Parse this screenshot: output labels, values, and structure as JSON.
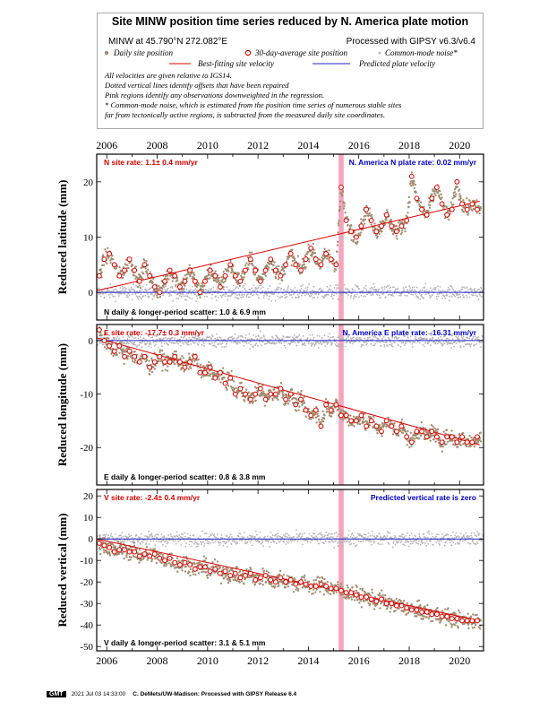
{
  "header": {
    "title": "Site MINW position time series reduced by N. America plate motion",
    "site": "MINW at 45.790°N 272.082°E",
    "processed": "Processed with GIPSY v6.3/v6.4",
    "legend": {
      "daily": "Daily site position",
      "avg": "30-day-average site position",
      "cm": "Common-mode noise*",
      "fit": "Best-fitting site velocity",
      "pred": "Predicted plate velocity"
    },
    "notes": [
      "All velocities are given relative to IGS14.",
      "Dotted vertical lines identify offsets that have been repaired",
      "Pink regions identify any observations downweighted in the regression.",
      "* Common-mode noise, which is estimated from the position time series of numerous stable sites",
      "far from tectonically active regions, is subtracted from the measured daily site coordinates."
    ]
  },
  "colors": {
    "daily": "#a08c6e",
    "cm": "#b4b4b4",
    "fit": "#e00000",
    "avg_edge": "#e00000",
    "pred": "#2020cc",
    "pink": "#f4a6bd",
    "rate_red": "#dd0000",
    "rate_blue": "#0000cc"
  },
  "chart_data": [
    {
      "type": "scatter",
      "component": "N",
      "ylabel": "Reduced latitude (mm)",
      "xlim": [
        2005.6,
        2020.95
      ],
      "ylim": [
        -5,
        25
      ],
      "yticks": [
        0,
        10,
        20
      ],
      "xticks": [
        2006,
        2008,
        2010,
        2012,
        2014,
        2016,
        2018,
        2020
      ],
      "site_rate": "N site rate:   1.1± 0.4 mm/yr",
      "plate_rate": "N. America N plate rate: 0.02 mm/yr",
      "scatter": "N daily & longer-period scatter:    1.0  &   6.9 mm",
      "fit_line": {
        "x": [
          2005.6,
          2020.8
        ],
        "y": [
          0.3,
          16.5
        ]
      },
      "pred_line": {
        "y": 0
      },
      "pink_band": [
        2015.2,
        2015.4
      ],
      "avg_series": {
        "x": [
          2005.7,
          2005.9,
          2006.1,
          2006.3,
          2006.5,
          2006.7,
          2006.9,
          2007.1,
          2007.3,
          2007.5,
          2007.7,
          2007.9,
          2008.1,
          2008.3,
          2008.5,
          2008.7,
          2008.9,
          2009.1,
          2009.3,
          2009.5,
          2009.7,
          2009.9,
          2010.1,
          2010.3,
          2010.5,
          2010.7,
          2010.9,
          2011.1,
          2011.3,
          2011.5,
          2011.7,
          2011.9,
          2012.1,
          2012.3,
          2012.5,
          2012.7,
          2012.9,
          2013.1,
          2013.3,
          2013.5,
          2013.7,
          2013.9,
          2014.1,
          2014.3,
          2014.5,
          2014.7,
          2014.9,
          2015.1,
          2015.3,
          2015.5,
          2015.7,
          2015.9,
          2016.1,
          2016.3,
          2016.5,
          2016.7,
          2016.9,
          2017.1,
          2017.3,
          2017.5,
          2017.7,
          2017.9,
          2018.1,
          2018.3,
          2018.5,
          2018.7,
          2018.9,
          2019.1,
          2019.3,
          2019.5,
          2019.7,
          2019.9,
          2020.1,
          2020.3,
          2020.5,
          2020.7
        ],
        "y": [
          3,
          6,
          7,
          5,
          3,
          4,
          6,
          4,
          2,
          5,
          3,
          1,
          0,
          2,
          4,
          3,
          1,
          2,
          4,
          2,
          0,
          2,
          4,
          3,
          1,
          3,
          5,
          3,
          2,
          4,
          6,
          4,
          2,
          4,
          6,
          4,
          3,
          5,
          7,
          5,
          4,
          6,
          8,
          6,
          5,
          7,
          6,
          5,
          19,
          13,
          11,
          10,
          12,
          15,
          13,
          11,
          12,
          14,
          12,
          11,
          12,
          13,
          21,
          17,
          15,
          14,
          17,
          19,
          16,
          14,
          15,
          20,
          16,
          15,
          16,
          15
        ]
      }
    },
    {
      "type": "scatter",
      "component": "E",
      "ylabel": "Reduced longitude (mm)",
      "xlim": [
        2005.6,
        2020.95
      ],
      "ylim": [
        -27,
        3
      ],
      "yticks": [
        0,
        -10,
        -20
      ],
      "xticks": [
        2006,
        2008,
        2010,
        2012,
        2014,
        2016,
        2018,
        2020
      ],
      "site_rate": "E site rate: -17.7± 0.3 mm/yr",
      "plate_rate": "N. America E plate rate: -16.31 mm/yr",
      "scatter": "E daily & longer-period scatter:    0.8  &   3.8 mm",
      "fit_line": {
        "x": [
          2005.6,
          2020.8
        ],
        "y": [
          0.5,
          -19.5
        ]
      },
      "pred_line": {
        "y": 0
      },
      "pink_band": [
        2015.2,
        2015.4
      ],
      "avg_series": {
        "x": [
          2005.7,
          2005.9,
          2006.1,
          2006.3,
          2006.5,
          2006.7,
          2006.9,
          2007.1,
          2007.3,
          2007.5,
          2007.7,
          2007.9,
          2008.1,
          2008.3,
          2008.5,
          2008.7,
          2008.9,
          2009.1,
          2009.3,
          2009.5,
          2009.7,
          2009.9,
          2010.1,
          2010.3,
          2010.5,
          2010.7,
          2010.9,
          2011.1,
          2011.3,
          2011.5,
          2011.7,
          2011.9,
          2012.1,
          2012.3,
          2012.5,
          2012.7,
          2012.9,
          2013.1,
          2013.3,
          2013.5,
          2013.7,
          2013.9,
          2014.1,
          2014.3,
          2014.5,
          2014.7,
          2014.9,
          2015.1,
          2015.3,
          2015.5,
          2015.7,
          2015.9,
          2016.1,
          2016.3,
          2016.5,
          2016.7,
          2016.9,
          2017.1,
          2017.3,
          2017.5,
          2017.7,
          2017.9,
          2018.1,
          2018.3,
          2018.5,
          2018.7,
          2018.9,
          2019.1,
          2019.3,
          2019.5,
          2019.7,
          2019.9,
          2020.1,
          2020.3,
          2020.5,
          2020.7
        ],
        "y": [
          2,
          0,
          -1,
          -2,
          -1,
          -3,
          -2,
          -3,
          -4,
          -3,
          -5,
          -4,
          -3,
          -4,
          -4,
          -3,
          -4,
          -5,
          -4,
          -3,
          -6,
          -6,
          -5,
          -7,
          -6,
          -8,
          -7,
          -10,
          -9,
          -10,
          -11,
          -10,
          -9,
          -11,
          -10,
          -10,
          -9,
          -11,
          -10,
          -12,
          -11,
          -13,
          -14,
          -13,
          -16,
          -12,
          -13,
          -12,
          -14,
          -14,
          -15,
          -15,
          -14,
          -16,
          -15,
          -16,
          -17,
          -15,
          -16,
          -17,
          -16,
          -18,
          -19,
          -17,
          -17,
          -18,
          -17,
          -18,
          -19,
          -18,
          -18,
          -19,
          -18,
          -19,
          -19,
          -18
        ]
      }
    },
    {
      "type": "scatter",
      "component": "V",
      "ylabel": "Reduced vertical (mm)",
      "xlim": [
        2005.6,
        2020.95
      ],
      "ylim": [
        -52,
        23
      ],
      "yticks": [
        20,
        10,
        0,
        -10,
        -20,
        -30,
        -40,
        -50
      ],
      "xticks": [
        2006,
        2008,
        2010,
        2012,
        2014,
        2016,
        2018,
        2020
      ],
      "site_rate": "V site rate:  -2.4± 0.4 mm/yr",
      "plate_rate": "Predicted vertical rate is zero",
      "scatter": "V daily & longer-period scatter:    3.1  &   5.1 mm",
      "fit_line": {
        "x": [
          2005.6,
          2020.8
        ],
        "y": [
          0,
          -38
        ]
      },
      "pred_line": {
        "y": 0
      },
      "pink_band": [
        2015.2,
        2015.4
      ],
      "avg_series": {
        "x": [
          2005.7,
          2005.9,
          2006.1,
          2006.3,
          2006.5,
          2006.7,
          2006.9,
          2007.1,
          2007.3,
          2007.5,
          2007.7,
          2007.9,
          2008.1,
          2008.3,
          2008.5,
          2008.7,
          2008.9,
          2009.1,
          2009.3,
          2009.5,
          2009.7,
          2009.9,
          2010.1,
          2010.3,
          2010.5,
          2010.7,
          2010.9,
          2011.1,
          2011.3,
          2011.5,
          2011.7,
          2011.9,
          2012.1,
          2012.3,
          2012.5,
          2012.7,
          2012.9,
          2013.1,
          2013.3,
          2013.5,
          2013.7,
          2013.9,
          2014.1,
          2014.3,
          2014.5,
          2014.7,
          2014.9,
          2015.1,
          2015.3,
          2015.5,
          2015.7,
          2015.9,
          2016.1,
          2016.3,
          2016.5,
          2016.7,
          2016.9,
          2017.1,
          2017.3,
          2017.5,
          2017.7,
          2017.9,
          2018.1,
          2018.3,
          2018.5,
          2018.7,
          2018.9,
          2019.1,
          2019.3,
          2019.5,
          2019.7,
          2019.9,
          2020.1,
          2020.3,
          2020.5,
          2020.7
        ],
        "y": [
          -2,
          -3,
          -4,
          -6,
          -5,
          -5,
          -6,
          -6,
          -8,
          -7,
          -8,
          -7,
          -9,
          -10,
          -9,
          -11,
          -12,
          -11,
          -12,
          -14,
          -13,
          -13,
          -15,
          -14,
          -16,
          -15,
          -17,
          -16,
          -18,
          -17,
          -16,
          -19,
          -18,
          -17,
          -19,
          -20,
          -18,
          -20,
          -19,
          -21,
          -20,
          -21,
          -22,
          -22,
          -21,
          -22,
          -23,
          -23,
          -24,
          -25,
          -25,
          -26,
          -27,
          -27,
          -28,
          -29,
          -28,
          -30,
          -30,
          -31,
          -31,
          -32,
          -33,
          -33,
          -34,
          -34,
          -35,
          -35,
          -36,
          -36,
          -37,
          -37,
          -38,
          -38,
          -38,
          -38
        ]
      }
    }
  ],
  "footer": {
    "logo": "GMT",
    "timestamp": "2021 Jul 03 14:33:00",
    "credit": "C. DeMets/UW-Madison: Processed with GIPSY Release 6.4"
  }
}
